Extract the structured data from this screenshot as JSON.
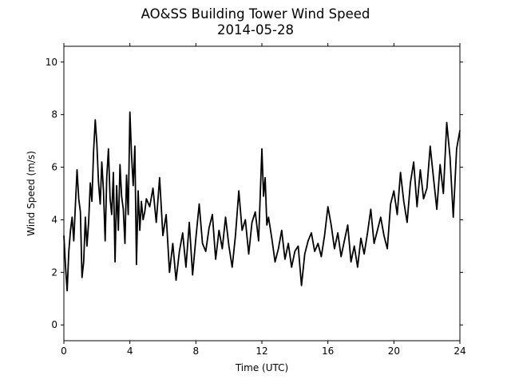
{
  "chart_data": {
    "type": "line",
    "title_line1": "AO&SS Building Tower Wind Speed",
    "title_line2": "2014-05-28",
    "xlabel": "Time (UTC)",
    "ylabel": "Wind Speed (m/s)",
    "xlim": [
      0,
      24
    ],
    "ylim": [
      -0.6,
      10.6
    ],
    "xticks": [
      0,
      4,
      8,
      12,
      16,
      20,
      24
    ],
    "yticks": [
      0,
      2,
      4,
      6,
      8,
      10
    ],
    "grid": false,
    "line_color": "#000000",
    "series": [
      {
        "x": [
          0,
          0.1,
          0.2,
          0.3,
          0.4,
          0.5,
          0.6,
          0.7,
          0.8,
          0.9,
          1.0,
          1.1,
          1.2,
          1.3,
          1.4,
          1.5,
          1.6,
          1.7,
          1.8,
          1.9,
          2.0,
          2.1,
          2.2,
          2.3,
          2.4,
          2.5,
          2.6,
          2.7,
          2.8,
          2.9,
          3.0,
          3.1,
          3.2,
          3.3,
          3.4,
          3.5,
          3.6,
          3.7,
          3.8,
          3.9,
          4.0,
          4.1,
          4.2,
          4.3,
          4.4,
          4.5,
          4.6,
          4.7,
          4.8,
          4.9,
          5.0,
          5.2,
          5.4,
          5.6,
          5.8,
          6.0,
          6.2,
          6.4,
          6.6,
          6.8,
          7.0,
          7.2,
          7.4,
          7.6,
          7.8,
          8.0,
          8.2,
          8.4,
          8.6,
          8.8,
          9.0,
          9.2,
          9.4,
          9.6,
          9.8,
          10.0,
          10.2,
          10.4,
          10.6,
          10.8,
          11.0,
          11.2,
          11.4,
          11.6,
          11.8,
          12.0,
          12.1,
          12.2,
          12.3,
          12.4,
          12.6,
          12.8,
          13.0,
          13.2,
          13.4,
          13.6,
          13.8,
          14.0,
          14.2,
          14.4,
          14.6,
          14.8,
          15.0,
          15.2,
          15.4,
          15.6,
          15.8,
          16.0,
          16.2,
          16.4,
          16.6,
          16.8,
          17.0,
          17.2,
          17.4,
          17.6,
          17.8,
          18.0,
          18.2,
          18.4,
          18.6,
          18.8,
          19.0,
          19.2,
          19.4,
          19.6,
          19.8,
          20.0,
          20.2,
          20.4,
          20.6,
          20.8,
          21.0,
          21.2,
          21.4,
          21.6,
          21.8,
          22.0,
          22.2,
          22.4,
          22.6,
          22.8,
          23.0,
          23.2,
          23.4,
          23.6,
          23.8,
          24.0
        ],
        "values": [
          3.4,
          2.2,
          1.3,
          2.8,
          3.6,
          4.1,
          3.2,
          4.6,
          5.9,
          4.8,
          4.3,
          1.8,
          2.4,
          4.1,
          3.0,
          3.9,
          5.4,
          4.7,
          6.6,
          7.8,
          6.9,
          5.4,
          4.6,
          6.2,
          5.1,
          3.2,
          5.6,
          6.7,
          4.8,
          4.2,
          5.8,
          2.4,
          5.3,
          3.6,
          6.1,
          4.9,
          4.4,
          3.1,
          5.7,
          4.2,
          8.1,
          6.5,
          5.3,
          6.8,
          2.3,
          5.1,
          3.6,
          4.7,
          4.0,
          4.3,
          4.8,
          4.5,
          5.2,
          3.9,
          5.6,
          3.4,
          4.2,
          2.0,
          3.1,
          1.7,
          2.8,
          3.5,
          2.2,
          3.9,
          1.9,
          3.3,
          4.6,
          3.1,
          2.8,
          3.7,
          4.2,
          2.5,
          3.6,
          2.9,
          4.1,
          3.0,
          2.2,
          3.4,
          5.1,
          3.6,
          4.0,
          2.7,
          3.9,
          4.3,
          3.2,
          6.7,
          4.9,
          5.6,
          3.8,
          4.1,
          3.3,
          2.4,
          2.9,
          3.6,
          2.5,
          3.1,
          2.2,
          2.8,
          3.0,
          1.5,
          2.7,
          3.2,
          3.5,
          2.8,
          3.1,
          2.6,
          3.4,
          4.5,
          3.8,
          2.9,
          3.5,
          2.6,
          3.2,
          3.8,
          2.4,
          3.0,
          2.2,
          3.3,
          2.7,
          3.5,
          4.4,
          3.1,
          3.6,
          4.1,
          3.4,
          2.9,
          4.6,
          5.1,
          4.2,
          5.8,
          4.7,
          3.9,
          5.4,
          6.2,
          4.5,
          5.9,
          4.8,
          5.2,
          6.8,
          5.6,
          4.4,
          6.1,
          5.0,
          7.7,
          6.4,
          4.1,
          6.7,
          7.4
        ]
      }
    ]
  }
}
